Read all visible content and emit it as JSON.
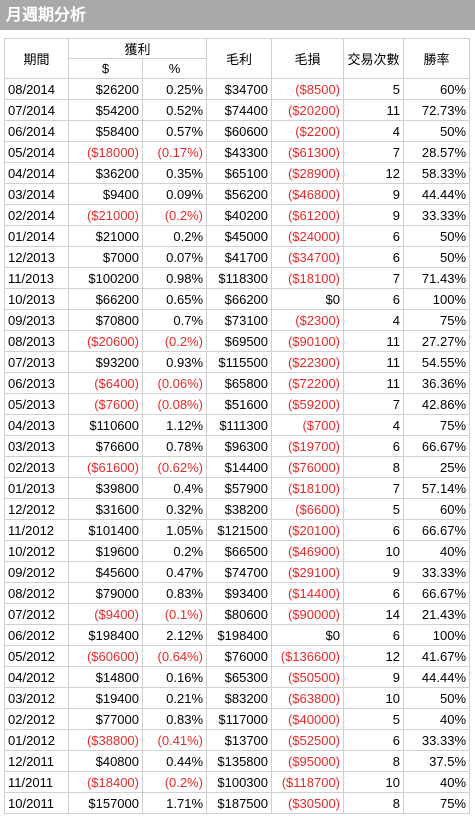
{
  "title": "月週期分析",
  "headers": {
    "period": "期間",
    "profit": "獲利",
    "profit_dollar": "$",
    "profit_pct": "%",
    "gross_profit": "毛利",
    "gross_loss": "毛損",
    "trades": "交易次數",
    "win_rate": "勝率"
  },
  "colors": {
    "negative": "#e32b2b",
    "title_bar": "#a9a9a9"
  },
  "rows": [
    [
      "08/2014",
      "$26200",
      "0.25%",
      "$34700",
      "($8500)",
      "5",
      "60%"
    ],
    [
      "07/2014",
      "$54200",
      "0.52%",
      "$74400",
      "($20200)",
      "11",
      "72.73%"
    ],
    [
      "06/2014",
      "$58400",
      "0.57%",
      "$60600",
      "($2200)",
      "4",
      "50%"
    ],
    [
      "05/2014",
      "($18000)",
      "(0.17%)",
      "$43300",
      "($61300)",
      "7",
      "28.57%"
    ],
    [
      "04/2014",
      "$36200",
      "0.35%",
      "$65100",
      "($28900)",
      "12",
      "58.33%"
    ],
    [
      "03/2014",
      "$9400",
      "0.09%",
      "$56200",
      "($46800)",
      "9",
      "44.44%"
    ],
    [
      "02/2014",
      "($21000)",
      "(0.2%)",
      "$40200",
      "($61200)",
      "9",
      "33.33%"
    ],
    [
      "01/2014",
      "$21000",
      "0.2%",
      "$45000",
      "($24000)",
      "6",
      "50%"
    ],
    [
      "12/2013",
      "$7000",
      "0.07%",
      "$41700",
      "($34700)",
      "6",
      "50%"
    ],
    [
      "11/2013",
      "$100200",
      "0.98%",
      "$118300",
      "($18100)",
      "7",
      "71.43%"
    ],
    [
      "10/2013",
      "$66200",
      "0.65%",
      "$66200",
      "$0",
      "6",
      "100%"
    ],
    [
      "09/2013",
      "$70800",
      "0.7%",
      "$73100",
      "($2300)",
      "4",
      "75%"
    ],
    [
      "08/2013",
      "($20600)",
      "(0.2%)",
      "$69500",
      "($90100)",
      "11",
      "27.27%"
    ],
    [
      "07/2013",
      "$93200",
      "0.93%",
      "$115500",
      "($22300)",
      "11",
      "54.55%"
    ],
    [
      "06/2013",
      "($6400)",
      "(0.06%)",
      "$65800",
      "($72200)",
      "11",
      "36.36%"
    ],
    [
      "05/2013",
      "($7600)",
      "(0.08%)",
      "$51600",
      "($59200)",
      "7",
      "42.86%"
    ],
    [
      "04/2013",
      "$110600",
      "1.12%",
      "$111300",
      "($700)",
      "4",
      "75%"
    ],
    [
      "03/2013",
      "$76600",
      "0.78%",
      "$96300",
      "($19700)",
      "6",
      "66.67%"
    ],
    [
      "02/2013",
      "($61600)",
      "(0.62%)",
      "$14400",
      "($76000)",
      "8",
      "25%"
    ],
    [
      "01/2013",
      "$39800",
      "0.4%",
      "$57900",
      "($18100)",
      "7",
      "57.14%"
    ],
    [
      "12/2012",
      "$31600",
      "0.32%",
      "$38200",
      "($6600)",
      "5",
      "60%"
    ],
    [
      "11/2012",
      "$101400",
      "1.05%",
      "$121500",
      "($20100)",
      "6",
      "66.67%"
    ],
    [
      "10/2012",
      "$19600",
      "0.2%",
      "$66500",
      "($46900)",
      "10",
      "40%"
    ],
    [
      "09/2012",
      "$45600",
      "0.47%",
      "$74700",
      "($29100)",
      "9",
      "33.33%"
    ],
    [
      "08/2012",
      "$79000",
      "0.83%",
      "$93400",
      "($14400)",
      "6",
      "66.67%"
    ],
    [
      "07/2012",
      "($9400)",
      "(0.1%)",
      "$80600",
      "($90000)",
      "14",
      "21.43%"
    ],
    [
      "06/2012",
      "$198400",
      "2.12%",
      "$198400",
      "$0",
      "6",
      "100%"
    ],
    [
      "05/2012",
      "($60600)",
      "(0.64%)",
      "$76000",
      "($136600)",
      "12",
      "41.67%"
    ],
    [
      "04/2012",
      "$14800",
      "0.16%",
      "$65300",
      "($50500)",
      "9",
      "44.44%"
    ],
    [
      "03/2012",
      "$19400",
      "0.21%",
      "$83200",
      "($63800)",
      "10",
      "50%"
    ],
    [
      "02/2012",
      "$77000",
      "0.83%",
      "$117000",
      "($40000)",
      "5",
      "40%"
    ],
    [
      "01/2012",
      "($38800)",
      "(0.41%)",
      "$13700",
      "($52500)",
      "6",
      "33.33%"
    ],
    [
      "12/2011",
      "$40800",
      "0.44%",
      "$135800",
      "($95000)",
      "8",
      "37.5%"
    ],
    [
      "11/2011",
      "($18400)",
      "(0.2%)",
      "$100300",
      "($118700)",
      "10",
      "40%"
    ],
    [
      "10/2011",
      "$157000",
      "1.71%",
      "$187500",
      "($30500)",
      "8",
      "75%"
    ]
  ]
}
